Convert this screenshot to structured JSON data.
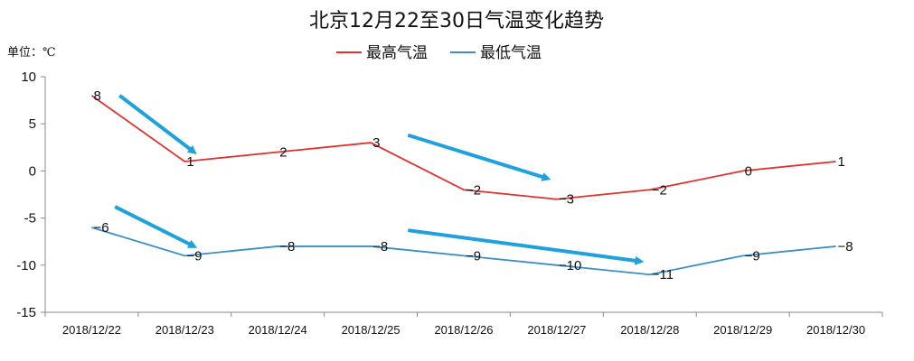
{
  "chart_data": {
    "type": "line",
    "title": "北京12月22至30日气温变化趋势",
    "unit_label": "单位：℃",
    "categories": [
      "2018/12/22",
      "2018/12/23",
      "2018/12/24",
      "2018/12/25",
      "2018/12/26",
      "2018/12/27",
      "2018/12/28",
      "2018/12/29",
      "2018/12/30"
    ],
    "series": [
      {
        "name": "最高气温",
        "color": "#e03131",
        "values": [
          8,
          1,
          2,
          3,
          -2,
          -3,
          -2,
          0,
          1
        ]
      },
      {
        "name": "最低气温",
        "color": "#3a8fc4",
        "values": [
          -6,
          -9,
          -8,
          -8,
          -9,
          -10,
          -11,
          -9,
          -8
        ]
      }
    ],
    "ylim": [
      -15,
      10
    ],
    "yticks": [
      10,
      5,
      0,
      -5,
      -10,
      -15
    ],
    "grid": false,
    "legend_position": "top-center",
    "annotations": {
      "arrow_color": "#1ea1dd",
      "arrows": [
        {
          "from": [
            0.3,
            8
          ],
          "to": [
            1.1,
            2
          ]
        },
        {
          "from": [
            3.4,
            3.8
          ],
          "to": [
            4.9,
            -0.8
          ]
        },
        {
          "from": [
            0.25,
            -3.8
          ],
          "to": [
            1.1,
            -8
          ]
        },
        {
          "from": [
            3.4,
            -6.3
          ],
          "to": [
            5.9,
            -9.6
          ]
        }
      ]
    }
  }
}
